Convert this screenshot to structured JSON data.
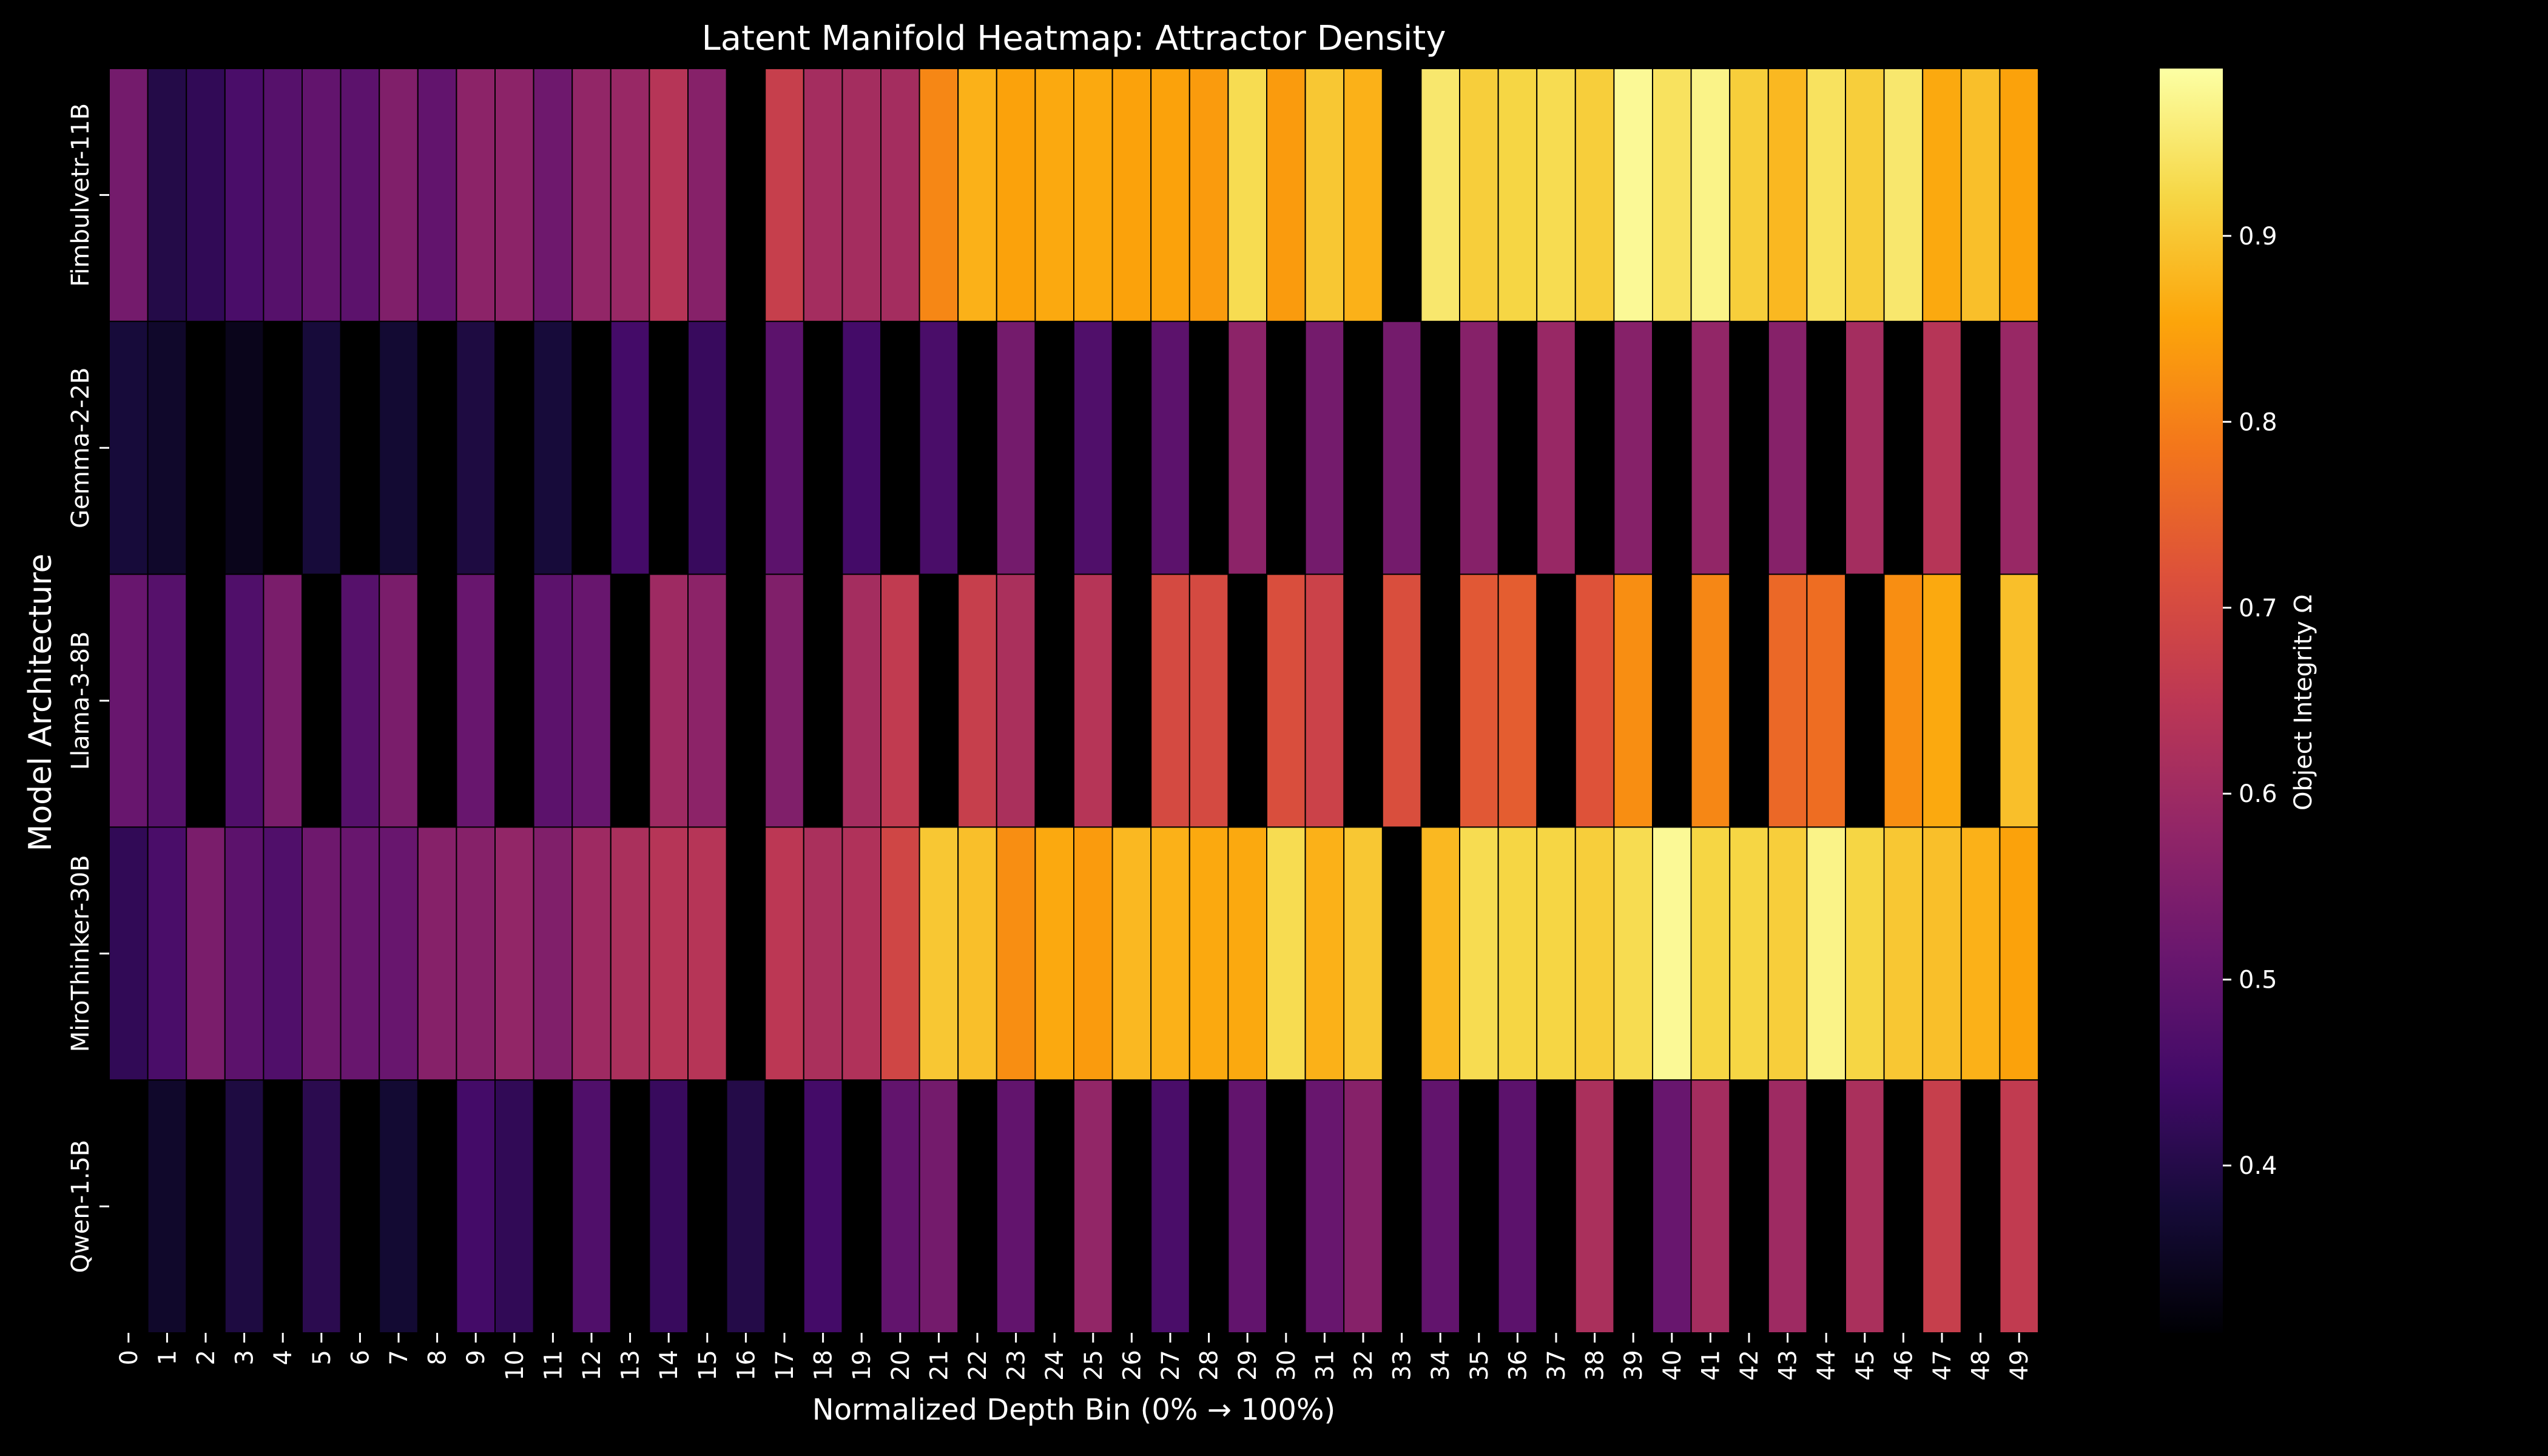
{
  "chart_data": {
    "type": "heatmap",
    "title": "Latent Manifold Heatmap: Attractor Density",
    "xlabel": "Normalized Depth Bin (0% → 100%)",
    "ylabel": "Model Architecture",
    "colorbar_label": "Object Integrity Ω",
    "colormap": "inferno",
    "vmin": 0.31,
    "vmax": 0.99,
    "colorbar_ticks": [
      0.4,
      0.5,
      0.6,
      0.7,
      0.8,
      0.9
    ],
    "columns": [
      "0",
      "1",
      "2",
      "3",
      "4",
      "5",
      "6",
      "7",
      "8",
      "9",
      "10",
      "11",
      "12",
      "13",
      "14",
      "15",
      "16",
      "17",
      "18",
      "19",
      "20",
      "21",
      "22",
      "23",
      "24",
      "25",
      "26",
      "27",
      "28",
      "29",
      "30",
      "31",
      "32",
      "33",
      "34",
      "35",
      "36",
      "37",
      "38",
      "39",
      "40",
      "41",
      "42",
      "43",
      "44",
      "45",
      "46",
      "47",
      "48",
      "49"
    ],
    "rows": [
      "Fimbulvetr-11B",
      "Gemma-2-2B",
      "Llama-3-8B",
      "MiroThinker-30B",
      "Qwen-1.5B"
    ],
    "values": [
      [
        0.53,
        0.4,
        0.42,
        0.46,
        0.48,
        0.5,
        0.49,
        0.55,
        0.5,
        0.57,
        0.57,
        0.52,
        0.58,
        0.59,
        0.64,
        0.56,
        null,
        0.67,
        0.61,
        0.61,
        0.61,
        0.81,
        0.87,
        0.85,
        0.86,
        0.86,
        0.85,
        0.85,
        0.84,
        0.93,
        0.84,
        0.9,
        0.87,
        null,
        0.95,
        0.91,
        0.92,
        0.93,
        0.91,
        0.98,
        0.94,
        0.97,
        0.91,
        0.88,
        0.94,
        0.91,
        0.95,
        0.86,
        0.89,
        0.85
      ],
      [
        0.38,
        0.36,
        null,
        0.34,
        null,
        0.38,
        null,
        0.37,
        null,
        0.39,
        null,
        0.38,
        null,
        0.45,
        null,
        0.43,
        null,
        0.49,
        null,
        0.45,
        null,
        0.46,
        null,
        0.53,
        null,
        0.47,
        null,
        0.49,
        null,
        0.57,
        null,
        0.53,
        null,
        0.53,
        null,
        0.56,
        null,
        0.59,
        null,
        0.56,
        null,
        0.58,
        null,
        0.56,
        null,
        0.61,
        null,
        0.64,
        null,
        0.59
      ],
      [
        0.51,
        0.48,
        null,
        0.47,
        0.54,
        null,
        0.48,
        0.54,
        null,
        0.51,
        null,
        0.49,
        0.51,
        null,
        0.6,
        0.57,
        null,
        0.55,
        null,
        0.61,
        0.66,
        null,
        0.67,
        0.62,
        null,
        0.64,
        null,
        0.7,
        0.7,
        null,
        0.71,
        0.68,
        null,
        0.71,
        null,
        0.73,
        0.74,
        null,
        0.72,
        0.82,
        null,
        0.81,
        null,
        0.76,
        0.77,
        null,
        0.82,
        0.86,
        null,
        0.89
      ],
      [
        0.42,
        0.46,
        0.54,
        0.49,
        0.47,
        0.52,
        0.51,
        0.51,
        0.56,
        0.56,
        0.58,
        0.55,
        0.6,
        0.62,
        0.64,
        0.64,
        null,
        0.65,
        0.62,
        0.63,
        0.69,
        0.9,
        0.89,
        0.82,
        0.86,
        0.84,
        0.88,
        0.87,
        0.86,
        0.86,
        0.93,
        0.87,
        0.9,
        null,
        0.88,
        0.93,
        0.92,
        0.92,
        0.91,
        0.93,
        0.98,
        0.92,
        0.92,
        0.91,
        0.97,
        0.92,
        0.9,
        0.89,
        0.87,
        0.85
      ],
      [
        null,
        0.36,
        null,
        0.39,
        null,
        0.41,
        null,
        0.37,
        null,
        0.45,
        0.42,
        null,
        0.47,
        null,
        0.43,
        null,
        0.4,
        null,
        0.45,
        null,
        0.5,
        0.53,
        null,
        0.5,
        null,
        0.58,
        null,
        0.46,
        null,
        0.5,
        null,
        0.51,
        0.56,
        null,
        0.5,
        null,
        0.49,
        null,
        0.62,
        null,
        0.51,
        0.61,
        null,
        0.6,
        null,
        0.62,
        null,
        0.67,
        null,
        0.66
      ]
    ]
  }
}
